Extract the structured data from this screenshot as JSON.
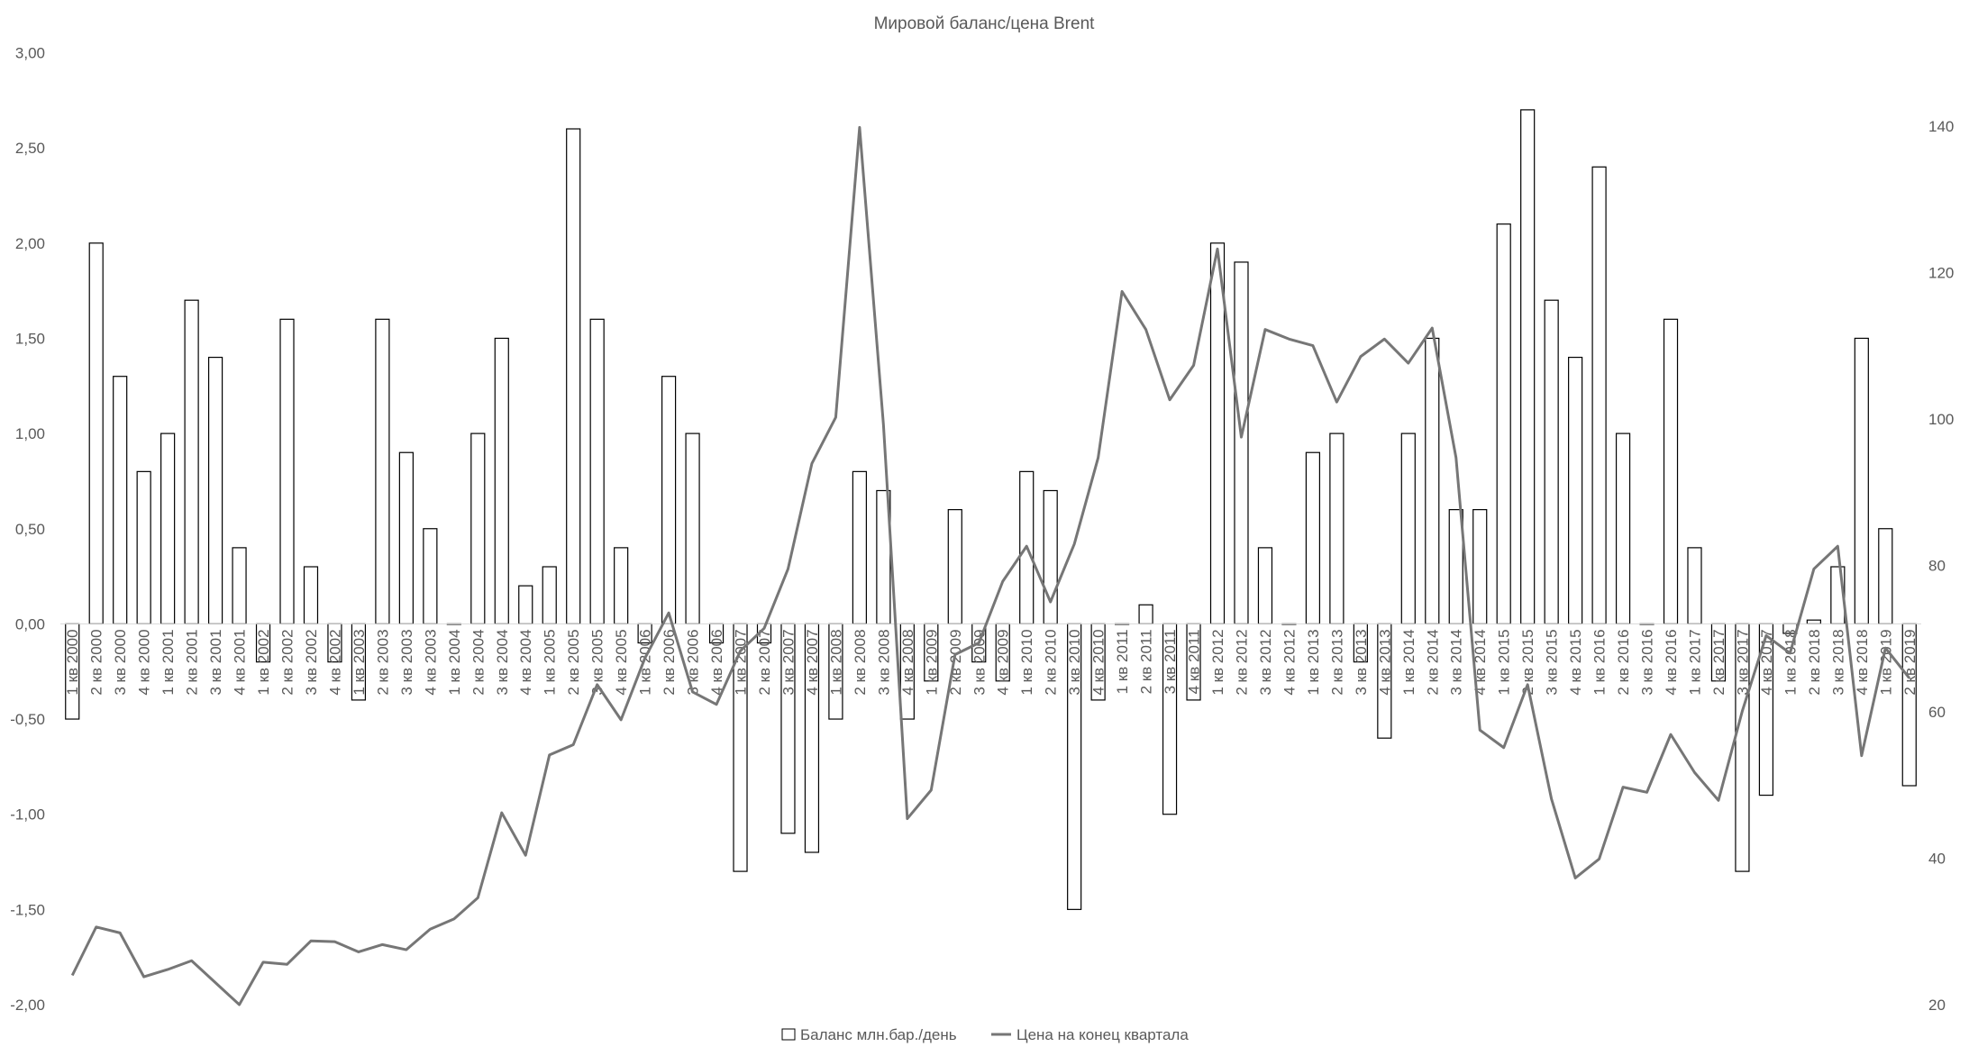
{
  "chart_data": {
    "type": "bar+line",
    "title": "Мировой баланс/цена Brent",
    "categories": [
      "1 кв 2000",
      "2 кв 2000",
      "3 кв 2000",
      "4 кв 2000",
      "1 кв 2001",
      "2 кв 2001",
      "3 кв 2001",
      "4 кв 2001",
      "1 кв 2002",
      "2 кв 2002",
      "3 кв 2002",
      "4 кв 2002",
      "1 кв 2003",
      "2 кв 2003",
      "3 кв 2003",
      "4 кв 2003",
      "1 кв 2004",
      "2 кв 2004",
      "3 кв 2004",
      "4 кв 2004",
      "1 кв 2005",
      "2 кв 2005",
      "3 кв 2005",
      "4 кв 2005",
      "1 кв 2006",
      "2 кв 2006",
      "3 кв 2006",
      "4 кв 2006",
      "1 кв 2007",
      "2 кв 2007",
      "3 кв 2007",
      "4 кв 2007",
      "1 кв 2008",
      "2 кв 2008",
      "3 кв 2008",
      "4 кв 2008",
      "1 кв 2009",
      "2 кв 2009",
      "3 кв 2009",
      "4 кв 2009",
      "1 кв 2010",
      "2 кв 2010",
      "3 кв 2010",
      "4 кв 2010",
      "1 кв 2011",
      "2 кв 2011",
      "3 кв 2011",
      "4 кв 2011",
      "1 кв 2012",
      "2 кв 2012",
      "3 кв 2012",
      "4 кв 2012",
      "1 кв 2013",
      "2 кв 2013",
      "3 кв 2013",
      "4 кв 2013",
      "1 кв 2014",
      "2 кв 2014",
      "3 кв 2014",
      "4 кв 2014",
      "1 кв 2015",
      "2 кв 2015",
      "3 кв 2015",
      "4 кв 2015",
      "1 кв 2016",
      "2 кв 2016",
      "3 кв 2016",
      "4 кв 2016",
      "1 кв 2017",
      "2 кв 2017",
      "3 кв 2017",
      "4 кв 2017",
      "1 кв 2018",
      "2 кв 2018",
      "3 кв 2018",
      "4 кв 2018",
      "1 кв 2019",
      "2 кв 2019"
    ],
    "series": [
      {
        "name": "Баланс млн.бар./день",
        "type": "bar",
        "axis": "left",
        "values": [
          -0.5,
          2.0,
          1.3,
          0.8,
          1.0,
          1.7,
          1.4,
          0.4,
          -0.2,
          1.6,
          0.3,
          -0.2,
          -0.4,
          1.6,
          0.9,
          0.5,
          0,
          1.0,
          1.5,
          0.2,
          0.3,
          2.6,
          1.6,
          0.4,
          -0.1,
          1.3,
          1.0,
          -0.1,
          -1.3,
          -0.1,
          -1.1,
          -1.2,
          -0.5,
          0.8,
          0.7,
          -0.5,
          -0.3,
          0.6,
          -0.2,
          -0.3,
          0.8,
          0.7,
          -1.5,
          -0.4,
          0,
          0.1,
          -1.0,
          -0.4,
          2.0,
          1.9,
          0.4,
          0,
          0.9,
          1.0,
          -0.2,
          -0.6,
          1.0,
          1.5,
          0.6,
          0.6,
          2.1,
          2.7,
          1.7,
          1.4,
          2.4,
          1.0,
          0,
          1.6,
          0.4,
          -0.3,
          -1.3,
          -0.9,
          -0.05,
          0.02,
          0.3,
          1.5,
          0.5,
          -0.85
        ]
      },
      {
        "name": "Цена на конец квартала",
        "type": "line",
        "axis": "right",
        "values": [
          24,
          30.6,
          29.8,
          23.8,
          24.8,
          26,
          23,
          20,
          25.8,
          25.5,
          28.7,
          28.6,
          27.2,
          28.2,
          27.5,
          30.3,
          31.7,
          34.6,
          46.2,
          40.4,
          54.1,
          55.5,
          63.7,
          58.9,
          67.3,
          73.5,
          62.7,
          61,
          68.3,
          71.4,
          79.5,
          93.9,
          100.2,
          139.8,
          99.2,
          45.4,
          49.3,
          67.8,
          69.4,
          77.8,
          82.6,
          75,
          82.9,
          94.7,
          117.4,
          112.2,
          102.6,
          107.3,
          123.2,
          97.5,
          112.2,
          110.9,
          110,
          102.3,
          108.5,
          110.9,
          107.6,
          112.4,
          94.7,
          57.5,
          55.1,
          63.7,
          48.1,
          37.3,
          39.9,
          49.7,
          49,
          56.9,
          51.7,
          47.9,
          60.1,
          70.4,
          68,
          79.5,
          82.6,
          54,
          68.7,
          64.6
        ]
      }
    ],
    "ylim_left": [
      -2,
      3
    ],
    "yticks_left": [
      "3,00",
      "2,50",
      "2,00",
      "1,50",
      "1,00",
      "0,50",
      "0,00",
      "-0,50",
      "-1,00",
      "-1,50",
      "-2,00"
    ],
    "ylim_right": [
      20,
      150
    ],
    "yticks_right": [
      "140",
      "120",
      "100",
      "80",
      "60",
      "40",
      "20"
    ],
    "legend_position": "bottom",
    "grid": false,
    "colors": {
      "bar_fill": "#ffffff",
      "bar_stroke": "#000000",
      "line": "#767676"
    }
  }
}
